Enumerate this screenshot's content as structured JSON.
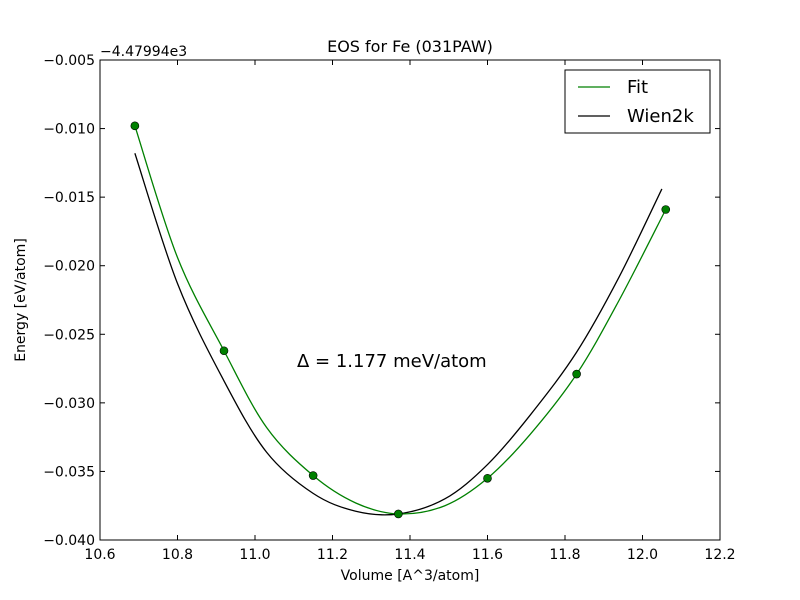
{
  "chart_data": {
    "type": "line",
    "title": "EOS for Fe (031PAW)",
    "xlabel": "Volume [A^3/atom]",
    "ylabel": "Energy [eV/atom]",
    "y_offset_label": "−4.47994e3",
    "xlim": [
      10.6,
      12.2
    ],
    "ylim": [
      -0.04,
      -0.005
    ],
    "xticks": [
      10.6,
      10.8,
      11.0,
      11.2,
      11.4,
      11.6,
      11.8,
      12.0,
      12.2
    ],
    "xtick_labels": [
      "10.6",
      "10.8",
      "11.0",
      "11.2",
      "11.4",
      "11.6",
      "11.8",
      "12.0",
      "12.2"
    ],
    "yticks": [
      -0.04,
      -0.035,
      -0.03,
      -0.025,
      -0.02,
      -0.015,
      -0.01,
      -0.005
    ],
    "ytick_labels": [
      "−0.040",
      "−0.035",
      "−0.030",
      "−0.025",
      "−0.020",
      "−0.015",
      "−0.010",
      "−0.005"
    ],
    "grid": false,
    "legend_position": "top-right",
    "annotation": "Δ = 1.177 meV/atom",
    "colors": {
      "fit": "#008000",
      "wien2k": "#000000",
      "points": "#008000"
    },
    "series": [
      {
        "name": "Fit",
        "color": "#008000",
        "x": [
          10.69,
          10.8,
          10.92,
          11.03,
          11.15,
          11.26,
          11.37,
          11.49,
          11.6,
          11.71,
          11.83,
          11.94,
          12.06
        ],
        "y": [
          -0.0098,
          -0.0194,
          -0.0262,
          -0.0318,
          -0.0353,
          -0.0373,
          -0.0381,
          -0.0375,
          -0.0355,
          -0.0323,
          -0.0279,
          -0.0225,
          -0.0159
        ]
      },
      {
        "name": "Wien2k",
        "color": "#000000",
        "x": [
          10.69,
          10.8,
          10.92,
          11.03,
          11.15,
          11.26,
          11.37,
          11.49,
          11.6,
          11.71,
          11.83,
          11.94,
          12.05
        ],
        "y": [
          -0.0118,
          -0.0213,
          -0.0284,
          -0.0336,
          -0.0366,
          -0.0379,
          -0.0381,
          -0.037,
          -0.0345,
          -0.0309,
          -0.0263,
          -0.0208,
          -0.0144
        ]
      }
    ],
    "points": {
      "x": [
        10.69,
        10.92,
        11.15,
        11.37,
        11.6,
        11.83,
        12.06
      ],
      "y": [
        -0.0098,
        -0.0262,
        -0.0353,
        -0.0381,
        -0.0355,
        -0.0279,
        -0.0159
      ]
    }
  }
}
